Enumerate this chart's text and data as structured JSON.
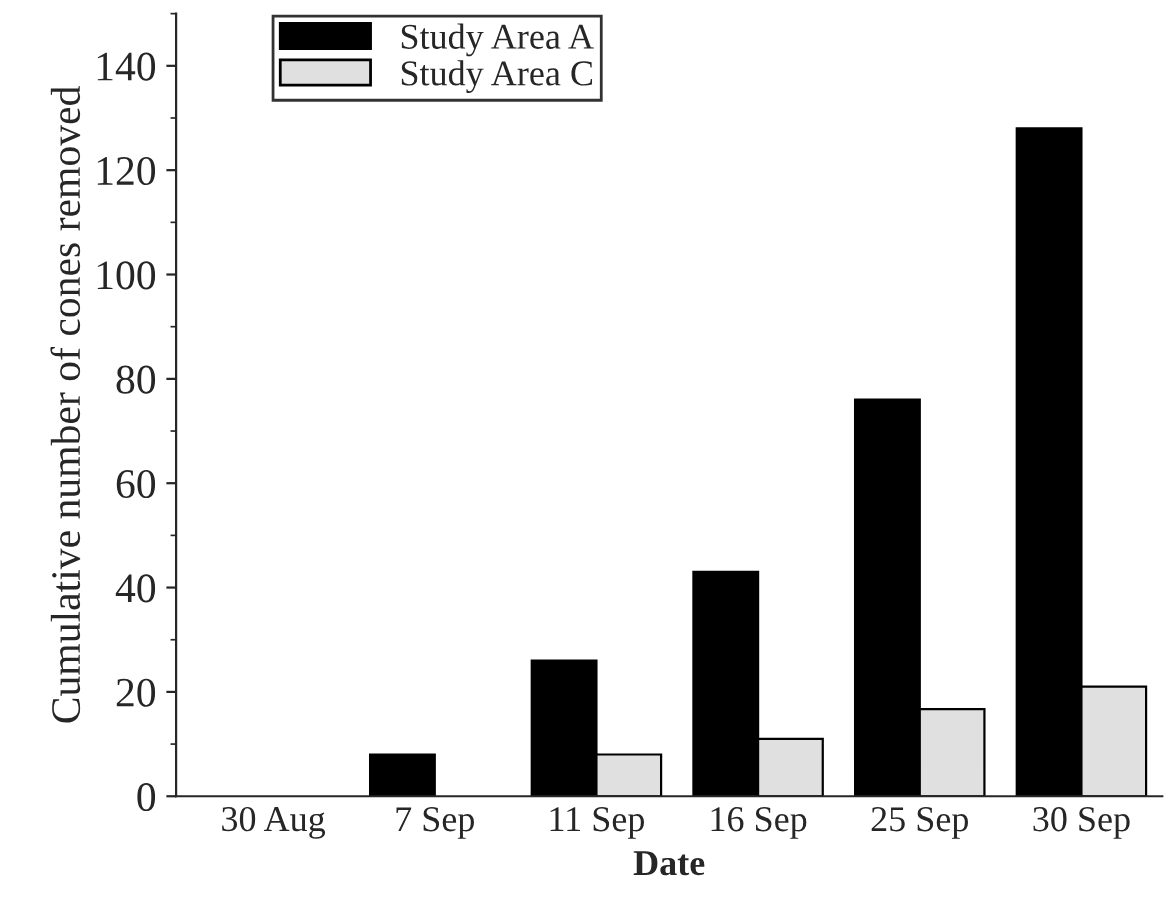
{
  "chart_data": {
    "type": "bar",
    "xlabel": "Date",
    "ylabel": "Cumulative number of cones removed",
    "categories": [
      "30 Aug",
      "7 Sep",
      "11 Sep",
      "16 Sep",
      "25 Sep",
      "30 Sep"
    ],
    "series": [
      {
        "name": "Study Area A",
        "color": "#000000",
        "values": [
          0,
          8,
          26,
          43,
          76,
          128
        ]
      },
      {
        "name": "Study Area C",
        "color": "#e0e0e0",
        "values": [
          0,
          0,
          8,
          11,
          16.7,
          21
        ]
      }
    ],
    "ylim": [
      0,
      150
    ],
    "yticks": [
      0,
      20,
      40,
      60,
      80,
      100,
      120,
      140
    ],
    "grid": false,
    "legend": "top left"
  }
}
